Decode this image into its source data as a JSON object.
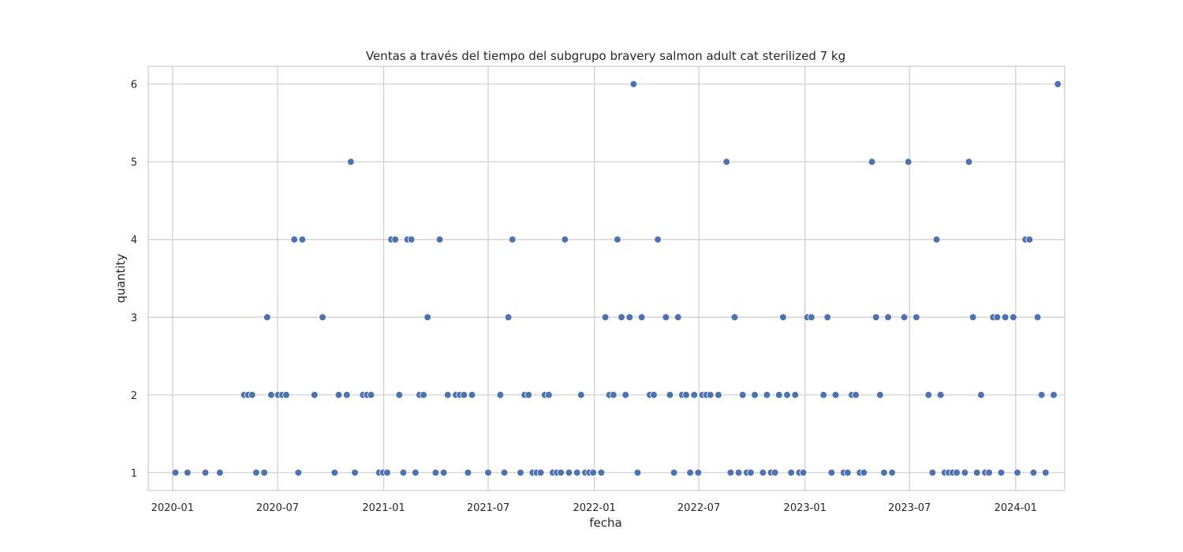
{
  "chart_data": {
    "type": "scatter",
    "title": "Ventas a través del tiempo del subgrupo bravery salmon adult cat sterilized 7 kg",
    "xlabel": "fecha",
    "ylabel": "quantity",
    "x_axis_kind": "date",
    "xlim": [
      "2019-11-20",
      "2024-03-26"
    ],
    "ylim": [
      0.77,
      6.23
    ],
    "x_ticks": [
      "2020-01-01",
      "2020-07-01",
      "2021-01-01",
      "2021-07-01",
      "2022-01-01",
      "2022-07-01",
      "2023-01-01",
      "2023-07-01",
      "2024-01-01"
    ],
    "x_tick_labels": [
      "2020-01",
      "2020-07",
      "2021-01",
      "2021-07",
      "2022-01",
      "2022-07",
      "2023-01",
      "2023-07",
      "2024-01"
    ],
    "y_ticks": [
      1,
      2,
      3,
      4,
      5,
      6
    ],
    "y_tick_labels": [
      "1",
      "2",
      "3",
      "4",
      "5",
      "6"
    ],
    "grid": true,
    "point_color": "#4c72b0",
    "series": [
      {
        "points": [
          {
            "x": "2020-01-06",
            "y": 1
          },
          {
            "x": "2020-01-27",
            "y": 1
          },
          {
            "x": "2020-02-27",
            "y": 1
          },
          {
            "x": "2020-03-23",
            "y": 1
          },
          {
            "x": "2020-05-04",
            "y": 2
          },
          {
            "x": "2020-05-11",
            "y": 2
          },
          {
            "x": "2020-05-18",
            "y": 2
          },
          {
            "x": "2020-05-25",
            "y": 1
          },
          {
            "x": "2020-06-08",
            "y": 1
          },
          {
            "x": "2020-06-13",
            "y": 3
          },
          {
            "x": "2020-06-20",
            "y": 2
          },
          {
            "x": "2020-07-02",
            "y": 2
          },
          {
            "x": "2020-07-09",
            "y": 2
          },
          {
            "x": "2020-07-16",
            "y": 2
          },
          {
            "x": "2020-07-30",
            "y": 4
          },
          {
            "x": "2020-08-06",
            "y": 1
          },
          {
            "x": "2020-08-13",
            "y": 4
          },
          {
            "x": "2020-09-03",
            "y": 2
          },
          {
            "x": "2020-09-17",
            "y": 3
          },
          {
            "x": "2020-10-08",
            "y": 1
          },
          {
            "x": "2020-10-15",
            "y": 2
          },
          {
            "x": "2020-10-29",
            "y": 2
          },
          {
            "x": "2020-11-05",
            "y": 5
          },
          {
            "x": "2020-11-12",
            "y": 1
          },
          {
            "x": "2020-11-26",
            "y": 2
          },
          {
            "x": "2020-12-03",
            "y": 2
          },
          {
            "x": "2020-12-10",
            "y": 2
          },
          {
            "x": "2020-12-24",
            "y": 1
          },
          {
            "x": "2020-12-31",
            "y": 1
          },
          {
            "x": "2021-01-07",
            "y": 1
          },
          {
            "x": "2021-01-14",
            "y": 4
          },
          {
            "x": "2021-01-21",
            "y": 4
          },
          {
            "x": "2021-01-28",
            "y": 2
          },
          {
            "x": "2021-02-04",
            "y": 1
          },
          {
            "x": "2021-02-11",
            "y": 4
          },
          {
            "x": "2021-02-18",
            "y": 4
          },
          {
            "x": "2021-02-25",
            "y": 1
          },
          {
            "x": "2021-03-04",
            "y": 2
          },
          {
            "x": "2021-03-11",
            "y": 2
          },
          {
            "x": "2021-03-18",
            "y": 3
          },
          {
            "x": "2021-04-01",
            "y": 1
          },
          {
            "x": "2021-04-08",
            "y": 4
          },
          {
            "x": "2021-04-15",
            "y": 1
          },
          {
            "x": "2021-04-22",
            "y": 2
          },
          {
            "x": "2021-05-06",
            "y": 2
          },
          {
            "x": "2021-05-13",
            "y": 2
          },
          {
            "x": "2021-05-20",
            "y": 2
          },
          {
            "x": "2021-05-27",
            "y": 1
          },
          {
            "x": "2021-06-03",
            "y": 2
          },
          {
            "x": "2021-07-01",
            "y": 1
          },
          {
            "x": "2021-07-22",
            "y": 2
          },
          {
            "x": "2021-07-29",
            "y": 1
          },
          {
            "x": "2021-08-05",
            "y": 3
          },
          {
            "x": "2021-08-12",
            "y": 4
          },
          {
            "x": "2021-08-26",
            "y": 1
          },
          {
            "x": "2021-09-02",
            "y": 2
          },
          {
            "x": "2021-09-09",
            "y": 2
          },
          {
            "x": "2021-09-16",
            "y": 1
          },
          {
            "x": "2021-09-23",
            "y": 1
          },
          {
            "x": "2021-09-30",
            "y": 1
          },
          {
            "x": "2021-10-07",
            "y": 2
          },
          {
            "x": "2021-10-14",
            "y": 2
          },
          {
            "x": "2021-10-21",
            "y": 1
          },
          {
            "x": "2021-10-28",
            "y": 1
          },
          {
            "x": "2021-11-04",
            "y": 1
          },
          {
            "x": "2021-11-11",
            "y": 4
          },
          {
            "x": "2021-11-18",
            "y": 1
          },
          {
            "x": "2021-12-02",
            "y": 1
          },
          {
            "x": "2021-12-09",
            "y": 2
          },
          {
            "x": "2021-12-16",
            "y": 1
          },
          {
            "x": "2021-12-23",
            "y": 1
          },
          {
            "x": "2021-12-30",
            "y": 1
          },
          {
            "x": "2022-01-13",
            "y": 1
          },
          {
            "x": "2022-01-20",
            "y": 3
          },
          {
            "x": "2022-01-27",
            "y": 2
          },
          {
            "x": "2022-02-03",
            "y": 2
          },
          {
            "x": "2022-02-10",
            "y": 4
          },
          {
            "x": "2022-02-17",
            "y": 3
          },
          {
            "x": "2022-02-24",
            "y": 2
          },
          {
            "x": "2022-03-03",
            "y": 3
          },
          {
            "x": "2022-03-10",
            "y": 6
          },
          {
            "x": "2022-03-17",
            "y": 1
          },
          {
            "x": "2022-03-24",
            "y": 3
          },
          {
            "x": "2022-04-07",
            "y": 2
          },
          {
            "x": "2022-04-14",
            "y": 2
          },
          {
            "x": "2022-04-21",
            "y": 4
          },
          {
            "x": "2022-05-05",
            "y": 3
          },
          {
            "x": "2022-05-12",
            "y": 2
          },
          {
            "x": "2022-05-19",
            "y": 1
          },
          {
            "x": "2022-05-26",
            "y": 3
          },
          {
            "x": "2022-06-02",
            "y": 2
          },
          {
            "x": "2022-06-09",
            "y": 2
          },
          {
            "x": "2022-06-16",
            "y": 1
          },
          {
            "x": "2022-06-23",
            "y": 2
          },
          {
            "x": "2022-06-30",
            "y": 1
          },
          {
            "x": "2022-07-07",
            "y": 2
          },
          {
            "x": "2022-07-14",
            "y": 2
          },
          {
            "x": "2022-07-21",
            "y": 2
          },
          {
            "x": "2022-08-04",
            "y": 2
          },
          {
            "x": "2022-08-18",
            "y": 5
          },
          {
            "x": "2022-08-25",
            "y": 1
          },
          {
            "x": "2022-09-01",
            "y": 3
          },
          {
            "x": "2022-09-08",
            "y": 1
          },
          {
            "x": "2022-09-15",
            "y": 2
          },
          {
            "x": "2022-09-22",
            "y": 1
          },
          {
            "x": "2022-09-29",
            "y": 1
          },
          {
            "x": "2022-10-06",
            "y": 2
          },
          {
            "x": "2022-10-20",
            "y": 1
          },
          {
            "x": "2022-10-27",
            "y": 2
          },
          {
            "x": "2022-11-03",
            "y": 1
          },
          {
            "x": "2022-11-10",
            "y": 1
          },
          {
            "x": "2022-11-17",
            "y": 2
          },
          {
            "x": "2022-11-24",
            "y": 3
          },
          {
            "x": "2022-12-01",
            "y": 2
          },
          {
            "x": "2022-12-08",
            "y": 1
          },
          {
            "x": "2022-12-15",
            "y": 2
          },
          {
            "x": "2022-12-22",
            "y": 1
          },
          {
            "x": "2022-12-29",
            "y": 1
          },
          {
            "x": "2023-01-05",
            "y": 3
          },
          {
            "x": "2023-01-12",
            "y": 3
          },
          {
            "x": "2023-02-02",
            "y": 2
          },
          {
            "x": "2023-02-09",
            "y": 3
          },
          {
            "x": "2023-02-16",
            "y": 1
          },
          {
            "x": "2023-02-23",
            "y": 2
          },
          {
            "x": "2023-03-09",
            "y": 1
          },
          {
            "x": "2023-03-16",
            "y": 1
          },
          {
            "x": "2023-03-23",
            "y": 2
          },
          {
            "x": "2023-03-30",
            "y": 2
          },
          {
            "x": "2023-04-06",
            "y": 1
          },
          {
            "x": "2023-04-13",
            "y": 1
          },
          {
            "x": "2023-04-27",
            "y": 5
          },
          {
            "x": "2023-05-04",
            "y": 3
          },
          {
            "x": "2023-05-11",
            "y": 2
          },
          {
            "x": "2023-05-18",
            "y": 1
          },
          {
            "x": "2023-05-25",
            "y": 3
          },
          {
            "x": "2023-06-01",
            "y": 1
          },
          {
            "x": "2023-06-22",
            "y": 3
          },
          {
            "x": "2023-06-29",
            "y": 5
          },
          {
            "x": "2023-07-13",
            "y": 3
          },
          {
            "x": "2023-08-03",
            "y": 2
          },
          {
            "x": "2023-08-10",
            "y": 1
          },
          {
            "x": "2023-08-17",
            "y": 4
          },
          {
            "x": "2023-08-24",
            "y": 2
          },
          {
            "x": "2023-08-31",
            "y": 1
          },
          {
            "x": "2023-09-07",
            "y": 1
          },
          {
            "x": "2023-09-14",
            "y": 1
          },
          {
            "x": "2023-09-21",
            "y": 1
          },
          {
            "x": "2023-10-05",
            "y": 1
          },
          {
            "x": "2023-10-12",
            "y": 5
          },
          {
            "x": "2023-10-19",
            "y": 3
          },
          {
            "x": "2023-10-26",
            "y": 1
          },
          {
            "x": "2023-11-02",
            "y": 2
          },
          {
            "x": "2023-11-09",
            "y": 1
          },
          {
            "x": "2023-11-16",
            "y": 1
          },
          {
            "x": "2023-11-23",
            "y": 3
          },
          {
            "x": "2023-11-30",
            "y": 3
          },
          {
            "x": "2023-12-07",
            "y": 1
          },
          {
            "x": "2023-12-14",
            "y": 3
          },
          {
            "x": "2023-12-28",
            "y": 3
          },
          {
            "x": "2024-01-04",
            "y": 1
          },
          {
            "x": "2024-01-18",
            "y": 4
          },
          {
            "x": "2024-01-25",
            "y": 4
          },
          {
            "x": "2024-02-01",
            "y": 1
          },
          {
            "x": "2024-02-08",
            "y": 3
          },
          {
            "x": "2024-02-15",
            "y": 2
          },
          {
            "x": "2024-02-22",
            "y": 1
          },
          {
            "x": "2024-03-07",
            "y": 2
          },
          {
            "x": "2024-03-14",
            "y": 6
          }
        ]
      }
    ]
  }
}
